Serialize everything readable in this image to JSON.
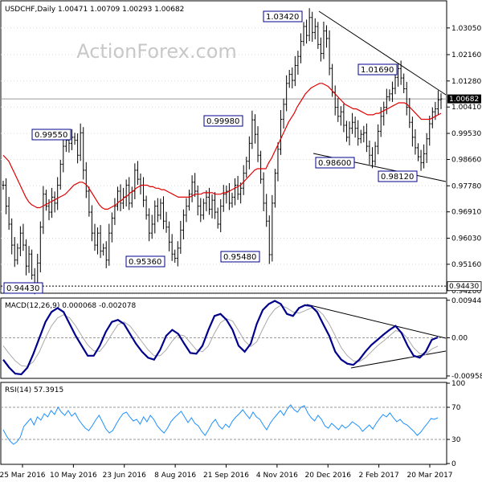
{
  "chart_data": [
    {
      "type": "line",
      "header": "USDCHF,Daily  1.00471 1.00709 1.00293 1.00682",
      "watermark": "ActionForex.com",
      "colors": {
        "price": "#000000",
        "ma": "#e00000",
        "trendline": "#000000",
        "grid": "#b8b8b8",
        "last_price": "#000000"
      },
      "ylim": [
        0.9422,
        1.0393
      ],
      "yticks": [
        {
          "v": 1.0305,
          "t": "1.03050"
        },
        {
          "v": 1.0216,
          "t": "1.02160"
        },
        {
          "v": 1.0128,
          "t": "1.01280"
        },
        {
          "v": 1.0041,
          "t": "1.00410"
        },
        {
          "v": 0.9953,
          "t": "0.99530"
        },
        {
          "v": 0.9866,
          "t": "0.98660"
        },
        {
          "v": 0.9778,
          "t": "0.97780"
        },
        {
          "v": 0.9691,
          "t": "0.96910"
        },
        {
          "v": 0.9603,
          "t": "0.96030"
        },
        {
          "v": 0.9516,
          "t": "0.95160"
        },
        {
          "v": 0.9428,
          "t": "0.94280"
        }
      ],
      "last_price": {
        "value": 1.00682,
        "label": "1.00682"
      },
      "support": {
        "value": 0.9443,
        "label": "0.94430"
      },
      "series": [
        {
          "values": [
            0.978,
            0.971,
            0.965,
            0.958,
            0.953,
            0.957,
            0.962,
            0.958,
            0.951,
            0.955,
            0.948,
            0.9443,
            0.952,
            0.964,
            0.975,
            0.971,
            0.969,
            0.974,
            0.972,
            0.978,
            0.985,
            0.991,
            0.993,
            0.992,
            0.994,
            0.993,
            0.988,
            0.9955,
            0.983,
            0.976,
            0.969,
            0.962,
            0.958,
            0.962,
            0.956,
            0.957,
            0.953,
            0.962,
            0.967,
            0.971,
            0.976,
            0.972,
            0.974,
            0.978,
            0.972,
            0.976,
            0.983,
            0.98,
            0.978,
            0.973,
            0.968,
            0.962,
            0.965,
            0.971,
            0.968,
            0.972,
            0.966,
            0.964,
            0.959,
            0.955,
            0.9536,
            0.957,
            0.963,
            0.968,
            0.971,
            0.975,
            0.979,
            0.976,
            0.971,
            0.968,
            0.972,
            0.974,
            0.97,
            0.973,
            0.969,
            0.965,
            0.971,
            0.975,
            0.976,
            0.972,
            0.974,
            0.978,
            0.975,
            0.977,
            0.982,
            0.986,
            0.992,
            0.9998,
            0.995,
            0.988,
            0.98,
            0.972,
            0.966,
            0.9548,
            0.972,
            0.982,
            0.99,
            1.0,
            1.005,
            1.012,
            1.015,
            1.013,
            1.018,
            1.021,
            1.026,
            1.031,
            1.028,
            1.034,
            1.029,
            1.031,
            1.025,
            1.022,
            1.0295,
            1.027,
            1.017,
            1.009,
            1.004,
            1.001,
            1.0025,
            0.998,
            0.994,
            0.997,
            0.999,
            0.997,
            0.9935,
            0.995,
            0.9955,
            0.991,
            0.988,
            0.986,
            0.991,
            0.996,
            1.001,
            1.004,
            1.0075,
            1.0085,
            1.0103,
            1.014,
            1.0169,
            1.0138,
            1.0102,
            1.004,
            0.999,
            0.994,
            0.9905,
            0.9875,
            0.9855,
            0.9885,
            0.9935,
            0.9985,
            1.0025,
            1.0035,
            1.0065,
            1.0068
          ]
        },
        {
          "name": "MA",
          "values": [
            0.988,
            0.987,
            0.986,
            0.984,
            0.982,
            0.98,
            0.978,
            0.976,
            0.974,
            0.9725,
            0.9715,
            0.971,
            0.9705,
            0.9705,
            0.971,
            0.9715,
            0.972,
            0.9725,
            0.973,
            0.9735,
            0.974,
            0.9745,
            0.975,
            0.976,
            0.977,
            0.978,
            0.9785,
            0.979,
            0.979,
            0.9785,
            0.9775,
            0.976,
            0.9745,
            0.973,
            0.9715,
            0.9705,
            0.97,
            0.97,
            0.9705,
            0.971,
            0.9715,
            0.9725,
            0.973,
            0.974,
            0.9745,
            0.9755,
            0.976,
            0.977,
            0.9775,
            0.978,
            0.978,
            0.978,
            0.9775,
            0.9775,
            0.977,
            0.977,
            0.9765,
            0.9765,
            0.976,
            0.9755,
            0.975,
            0.9745,
            0.974,
            0.974,
            0.974,
            0.974,
            0.974,
            0.9745,
            0.975,
            0.975,
            0.975,
            0.9755,
            0.9755,
            0.9755,
            0.9755,
            0.975,
            0.975,
            0.975,
            0.9755,
            0.9755,
            0.976,
            0.9765,
            0.977,
            0.9775,
            0.978,
            0.979,
            0.98,
            0.981,
            0.982,
            0.983,
            0.9835,
            0.9835,
            0.9835,
            0.9835,
            0.9855,
            0.987,
            0.989,
            0.991,
            0.993,
            0.995,
            0.997,
            0.999,
            1.0005,
            1.002,
            1.004,
            1.0055,
            1.007,
            1.0085,
            1.0095,
            1.0105,
            1.011,
            1.0115,
            1.012,
            1.012,
            1.0115,
            1.011,
            1.01,
            1.009,
            1.008,
            1.007,
            1.006,
            1.005,
            1.0045,
            1.004,
            1.0035,
            1.0035,
            1.003,
            1.0025,
            1.002,
            1.0015,
            1.0015,
            1.0015,
            1.002,
            1.002,
            1.0025,
            1.003,
            1.0035,
            1.004,
            1.0045,
            1.005,
            1.0055,
            1.0055,
            1.0055,
            1.005,
            1.004,
            1.003,
            1.002,
            1.001,
            1.0,
            1.0,
            1.0,
            1.0,
            1.0005,
            1.001,
            1.0015,
            1.002
          ]
        }
      ],
      "annotations": [
        {
          "label": "0.99550",
          "value": 0.9955
        },
        {
          "label": "0.94430",
          "value": 0.9443
        },
        {
          "label": "0.95360",
          "value": 0.9536
        },
        {
          "label": "0.99980",
          "value": 0.9998
        },
        {
          "label": "0.95480",
          "value": 0.9548
        },
        {
          "label": "1.03420",
          "value": 1.0342
        },
        {
          "label": "1.01690",
          "value": 1.0169
        },
        {
          "label": "0.98600",
          "value": 0.986
        },
        {
          "label": "0.98120",
          "value": 0.9812
        }
      ]
    },
    {
      "type": "line",
      "header": "MACD(12,26,9) 0.000068 -0.002078",
      "ylim": [
        -0.01,
        0.0098
      ],
      "yticks": [
        {
          "v": 0.009446,
          "t": "0.009446"
        },
        {
          "v": 0.0,
          "t": "0.00"
        },
        {
          "v": -0.009588,
          "t": "-0.009588"
        }
      ],
      "value_labels": [
        "0.00"
      ],
      "series": [
        {
          "name": "MACD",
          "values": [
            -0.0055,
            -0.0075,
            -0.009,
            -0.0092,
            -0.0075,
            -0.004,
            0.0,
            0.004,
            0.0065,
            0.0075,
            0.0065,
            0.0035,
            0.0005,
            -0.002,
            -0.0045,
            -0.0045,
            -0.002,
            0.0015,
            0.004,
            0.0045,
            0.0035,
            0.001,
            -0.0015,
            -0.0035,
            -0.005,
            -0.0055,
            -0.003,
            0.0005,
            0.002,
            0.001,
            -0.0015,
            -0.0038,
            -0.004,
            -0.002,
            0.002,
            0.0055,
            0.006,
            0.0045,
            0.002,
            -0.002,
            -0.0035,
            -0.0015,
            0.0035,
            0.007,
            0.0085,
            0.0093,
            0.0085,
            0.006,
            0.0055,
            0.0075,
            0.0082,
            0.008,
            0.0065,
            0.0035,
            0.0005,
            -0.0035,
            -0.0055,
            -0.0065,
            -0.0068,
            -0.0055,
            -0.0035,
            -0.0018,
            -0.0005,
            0.0008,
            0.002,
            0.003,
            0.0012,
            -0.002,
            -0.0045,
            -0.005,
            -0.0035,
            -0.0005,
            0.0001
          ]
        },
        {
          "name": "Signal",
          "values": [
            -0.002,
            -0.004,
            -0.0058,
            -0.007,
            -0.0072,
            -0.006,
            -0.0035,
            0.0,
            0.003,
            0.005,
            0.0058,
            0.005,
            0.003,
            0.0005,
            -0.0018,
            -0.0033,
            -0.0034,
            -0.0015,
            0.001,
            0.0033,
            0.004,
            0.003,
            0.001,
            -0.001,
            -0.003,
            -0.0045,
            -0.0045,
            -0.003,
            -0.0008,
            0.0008,
            0.0005,
            -0.0012,
            -0.003,
            -0.0035,
            -0.002,
            0.0012,
            0.0038,
            0.0048,
            0.0042,
            0.0018,
            -0.0008,
            -0.0022,
            -0.001,
            0.0022,
            0.0052,
            0.0072,
            0.0082,
            0.0075,
            0.0065,
            0.0062,
            0.0068,
            0.0075,
            0.0072,
            0.0058,
            0.0035,
            0.0005,
            -0.0025,
            -0.0045,
            -0.0058,
            -0.006,
            -0.005,
            -0.0035,
            -0.002,
            -0.0008,
            0.0005,
            0.0018,
            0.0015,
            -0.0002,
            -0.0025,
            -0.004,
            -0.0042,
            -0.0028,
            -0.0021
          ]
        }
      ]
    },
    {
      "type": "line",
      "header": "RSI(14) 57.3915",
      "ylim": [
        0,
        100
      ],
      "yticks": [
        {
          "v": 100,
          "t": "100"
        },
        {
          "v": 70,
          "t": "70"
        },
        {
          "v": 30,
          "t": "30"
        },
        {
          "v": 0,
          "t": "0"
        }
      ],
      "series": [
        {
          "name": "RSI",
          "values": [
            42,
            34,
            28,
            24,
            27,
            33,
            46,
            51,
            56,
            48,
            58,
            54,
            62,
            58,
            66,
            61,
            70,
            64,
            60,
            66,
            59,
            63,
            55,
            49,
            44,
            41,
            47,
            54,
            60,
            52,
            43,
            38,
            41,
            49,
            56,
            62,
            64,
            58,
            53,
            55,
            49,
            58,
            52,
            60,
            55,
            47,
            42,
            38,
            44,
            52,
            57,
            61,
            65,
            58,
            51,
            57,
            50,
            47,
            40,
            35,
            42,
            50,
            55,
            47,
            43,
            49,
            45,
            53,
            58,
            62,
            67,
            61,
            56,
            64,
            58,
            55,
            48,
            42,
            50,
            56,
            61,
            66,
            60,
            68,
            73,
            67,
            64,
            70,
            72,
            63,
            57,
            53,
            60,
            55,
            47,
            44,
            50,
            46,
            42,
            48,
            44,
            47,
            52,
            49,
            46,
            40,
            44,
            48,
            43,
            50,
            56,
            61,
            58,
            63,
            57,
            52,
            55,
            50,
            48,
            44,
            40,
            35,
            39,
            45,
            50,
            56,
            55,
            57
          ]
        }
      ]
    }
  ],
  "date_axis": {
    "labels": [
      "25 Mar 2016",
      "10 May 2016",
      "23 Jun 2016",
      "8 Aug 2016",
      "21 Sep 2016",
      "4 Nov 2016",
      "20 Dec 2016",
      "2 Feb 2017",
      "20 Mar 2017"
    ]
  }
}
